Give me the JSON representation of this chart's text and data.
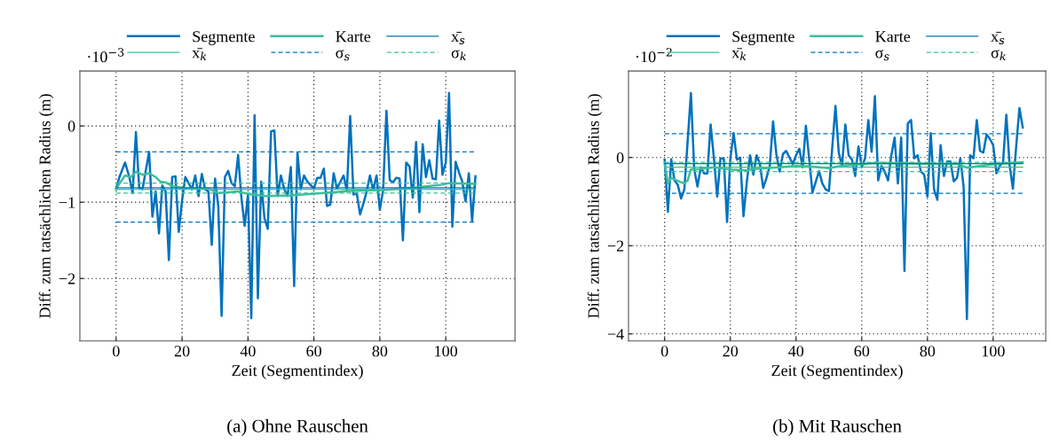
{
  "chart_data": [
    {
      "type": "line",
      "title": "(a) Ohne Rauschen",
      "xlabel": "Zeit (Segmentindex)",
      "ylabel": "Diff. zum tatsächlichen Radius (m)",
      "annotations": [
        "·10$^{−3}$"
      ],
      "xlim": [
        -11,
        121
      ],
      "xticks": [
        0,
        20,
        40,
        60,
        80,
        100
      ],
      "ylim": [
        -2.82,
        0.72
      ],
      "yticks": [
        -2,
        -1,
        0
      ],
      "grid": true,
      "legend": "top",
      "series": [
        {
          "name": "Segmente",
          "color": "#0072bd",
          "x": [
            0,
            1,
            2.7,
            4,
            5,
            6,
            7,
            8,
            10,
            11,
            12,
            13,
            14,
            15,
            16,
            17,
            18,
            19,
            20,
            21,
            23,
            24,
            25,
            26,
            27,
            28,
            29,
            30,
            31,
            32,
            33,
            34,
            35,
            36,
            37,
            38,
            39,
            40,
            41,
            42,
            43,
            44,
            45,
            46,
            47,
            48,
            49,
            50,
            51,
            52,
            53,
            54,
            55,
            56,
            57,
            58,
            60,
            61,
            62,
            63,
            64,
            65,
            66,
            67,
            69,
            70,
            71,
            72,
            73,
            74,
            75,
            76,
            77,
            78,
            79,
            80,
            81,
            82,
            83,
            84,
            85,
            86,
            87,
            88,
            89,
            90,
            91,
            92,
            93,
            94,
            95,
            96,
            97,
            98,
            99,
            100,
            101,
            102,
            103,
            104,
            105,
            106,
            107,
            108,
            109
          ],
          "values": [
            -0.82,
            -0.67,
            -0.48,
            -0.67,
            -0.88,
            -0.08,
            -0.81,
            -0.83,
            -0.34,
            -1.19,
            -0.86,
            -1.41,
            -0.78,
            -0.86,
            -1.76,
            -0.67,
            -0.66,
            -1.39,
            -0.98,
            -0.67,
            -0.83,
            -0.65,
            -0.92,
            -0.63,
            -0.83,
            -0.86,
            -1.56,
            -0.69,
            -1.06,
            -2.49,
            -0.67,
            -0.59,
            -0.75,
            -0.79,
            -0.38,
            -0.94,
            -1.31,
            -0.9,
            -2.52,
            0.14,
            -2.26,
            -0.73,
            -1.21,
            -1.35,
            -0.07,
            -0.06,
            -0.92,
            -0.65,
            -0.83,
            -0.92,
            -0.54,
            -2.1,
            -0.35,
            -0.83,
            -0.65,
            -0.73,
            -0.82,
            -0.68,
            -0.68,
            -0.56,
            -1.05,
            -1.03,
            -0.62,
            -0.82,
            -0.65,
            -0.85,
            0.13,
            -0.9,
            -0.88,
            -1.16,
            -1.02,
            -0.86,
            -0.65,
            -0.84,
            -0.65,
            -1.1,
            -0.84,
            0.2,
            -0.71,
            -0.74,
            -0.68,
            -0.69,
            -1.5,
            -0.48,
            -0.53,
            -0.94,
            -0.21,
            -1.13,
            -0.24,
            -0.67,
            -0.45,
            -0.69,
            -0.7,
            0.07,
            -0.64,
            -0.48,
            0.43,
            -1.32,
            -0.47,
            -0.61,
            -0.73,
            -0.99,
            -0.62,
            -1.25,
            -0.66
          ]
        },
        {
          "name": "Karte",
          "color": "#3cbf9a",
          "x": [
            0,
            2.7,
            4.5,
            6,
            8,
            10,
            12,
            13.4,
            15,
            17,
            21,
            28,
            31,
            37,
            41,
            45.5,
            53,
            63,
            72,
            81,
            90,
            99,
            101,
            109
          ],
          "values": [
            -0.82,
            -0.65,
            -0.67,
            -0.6,
            -0.64,
            -0.62,
            -0.67,
            -0.73,
            -0.74,
            -0.79,
            -0.82,
            -0.82,
            -0.88,
            -0.86,
            -0.9,
            -0.92,
            -0.91,
            -0.88,
            -0.85,
            -0.84,
            -0.81,
            -0.77,
            -0.75,
            -0.76
          ]
        },
        {
          "name": "x̄$_{s}$",
          "color": "#0072bd",
          "x": [
            0,
            109
          ],
          "values": [
            -0.81,
            -0.81
          ],
          "line_style": "solid"
        },
        {
          "name": "x̄$_{k}$",
          "color": "#3cbf9a",
          "x": [
            0,
            109
          ],
          "values": [
            -0.83,
            -0.83
          ],
          "line_style": "solid"
        },
        {
          "name": "σ$_{s}$",
          "color": "#0072bd",
          "x": [
            0,
            109
          ],
          "values": [
            -0.34,
            -0.34
          ],
          "line_style": "dashed"
        },
        {
          "color": "#0072bd",
          "x": [
            0,
            109
          ],
          "values": [
            -1.26,
            -1.26
          ],
          "line_style": "dashed"
        },
        {
          "name": "σ$_{k}$",
          "color": "#3cbf9a",
          "x": [
            0,
            109
          ],
          "values": [
            -0.75,
            -0.75
          ],
          "line_style": "dashed"
        },
        {
          "color": "#3cbf9a",
          "x": [
            0,
            109
          ],
          "values": [
            -0.88,
            -0.88
          ],
          "line_style": "dashed"
        }
      ]
    },
    {
      "type": "line",
      "title": "(b) Mit Rauschen",
      "xlabel": "Zeit (Segmentindex)",
      "ylabel": "Diff. zum tatsächlichen Radius (m)",
      "annotations": [
        "·10$^{−2}$"
      ],
      "xlim": [
        -11,
        116
      ],
      "xticks": [
        0,
        20,
        40,
        60,
        80,
        100
      ],
      "ylim": [
        -4.16,
        1.96
      ],
      "yticks": [
        -4,
        -2,
        0
      ],
      "grid": true,
      "legend": "top",
      "series": [
        {
          "name": "Segmente",
          "color": "#0072bd",
          "x": [
            0,
            1,
            2,
            3,
            4,
            5,
            6,
            8,
            9,
            10,
            11,
            12,
            13,
            14,
            15,
            16,
            17,
            18,
            19,
            20,
            21,
            22,
            23,
            24,
            25,
            26,
            27,
            28,
            29,
            30,
            31,
            32,
            33,
            34,
            35,
            36,
            37,
            39,
            40,
            41,
            42,
            43,
            44,
            45,
            47,
            48,
            49,
            50,
            52,
            53,
            54,
            55,
            56,
            57,
            58,
            59,
            60,
            61,
            62,
            63,
            64,
            65,
            66,
            67,
            68,
            69,
            70,
            71,
            72,
            73,
            74,
            75,
            76,
            77,
            78,
            79,
            80,
            81,
            82,
            83,
            84,
            85,
            86,
            87,
            88,
            89,
            90,
            91,
            92,
            93,
            94,
            95,
            96,
            97,
            98,
            99,
            100,
            101,
            102,
            103,
            104,
            105,
            106,
            107,
            108,
            109
          ],
          "values": [
            -0.05,
            -1.23,
            -0.04,
            -0.52,
            -0.62,
            -0.93,
            -0.72,
            1.46,
            -0.26,
            -0.66,
            -0.22,
            -0.36,
            -0.36,
            0.75,
            -0.02,
            -0.89,
            -0.02,
            -0.02,
            -1.46,
            -0.02,
            0.55,
            -0.05,
            0,
            -1.33,
            -0.56,
            0.05,
            -0.39,
            0.05,
            -0.15,
            -0.69,
            -0.46,
            -0.19,
            0.82,
            0.08,
            -0.32,
            0.08,
            0.15,
            -0.15,
            0.05,
            0.2,
            -0.22,
            0.72,
            -0.04,
            -0.79,
            -0.31,
            -0.59,
            -0.72,
            -0.76,
            1.17,
            0.11,
            -0.19,
            0.75,
            0.05,
            -0.04,
            -0.42,
            0.25,
            -0.22,
            -0.02,
            0.85,
            0.13,
            1.39,
            -0.52,
            -0.19,
            -0.32,
            -0.52,
            0.05,
            0.45,
            -0.59,
            0.45,
            -2.57,
            0.77,
            0.85,
            -0.02,
            0.05,
            -0.32,
            -0.39,
            -0.89,
            0.55,
            -0.72,
            -0.96,
            0.28,
            -0.42,
            -0.09,
            -0.09,
            -0.54,
            -0.46,
            -0.02,
            -0.66,
            -3.66,
            0.05,
            -0.02,
            0.85,
            0.15,
            0.11,
            0.52,
            0.42,
            0.28,
            -0.36,
            -0.19,
            -0.11,
            0.97,
            -0.17,
            -0.71,
            0.25,
            1.12,
            0.68
          ]
        },
        {
          "name": "Karte",
          "color": "#3cbf9a",
          "x": [
            0,
            1,
            2,
            3.7,
            6,
            7,
            8,
            10.8,
            15,
            20,
            25,
            27,
            33,
            40,
            44,
            50,
            53.7,
            64,
            73,
            80,
            89,
            92,
            96,
            102,
            109
          ],
          "values": [
            -0.12,
            -0.59,
            -0.46,
            -0.52,
            -0.59,
            -0.52,
            -0.27,
            -0.26,
            -0.22,
            -0.27,
            -0.29,
            -0.26,
            -0.23,
            -0.19,
            -0.2,
            -0.24,
            -0.19,
            -0.12,
            -0.13,
            -0.14,
            -0.14,
            -0.23,
            -0.19,
            -0.14,
            -0.11
          ]
        },
        {
          "name": "x̄$_{s}$",
          "color": "#0072bd",
          "x": [
            0,
            109
          ],
          "values": [
            -0.14,
            -0.14
          ],
          "line_style": "solid"
        },
        {
          "name": "x̄$_{k}$",
          "color": "#3cbf9a",
          "x": [
            0,
            109
          ],
          "values": [
            -0.22,
            -0.22
          ],
          "line_style": "solid"
        },
        {
          "name": "σ$_{s}$",
          "color": "#0072bd",
          "x": [
            0,
            109
          ],
          "values": [
            0.54,
            0.54
          ],
          "line_style": "dashed"
        },
        {
          "color": "#0072bd",
          "x": [
            0,
            109
          ],
          "values": [
            -0.81,
            -0.81
          ],
          "line_style": "dashed"
        },
        {
          "name": "σ$_{k}$",
          "color": "#3cbf9a",
          "x": [
            0,
            109
          ],
          "values": [
            -0.11,
            -0.11
          ],
          "line_style": "dashed"
        },
        {
          "color": "#3cbf9a",
          "x": [
            0,
            109
          ],
          "values": [
            -0.32,
            -0.32
          ],
          "line_style": "dashed"
        }
      ]
    }
  ]
}
